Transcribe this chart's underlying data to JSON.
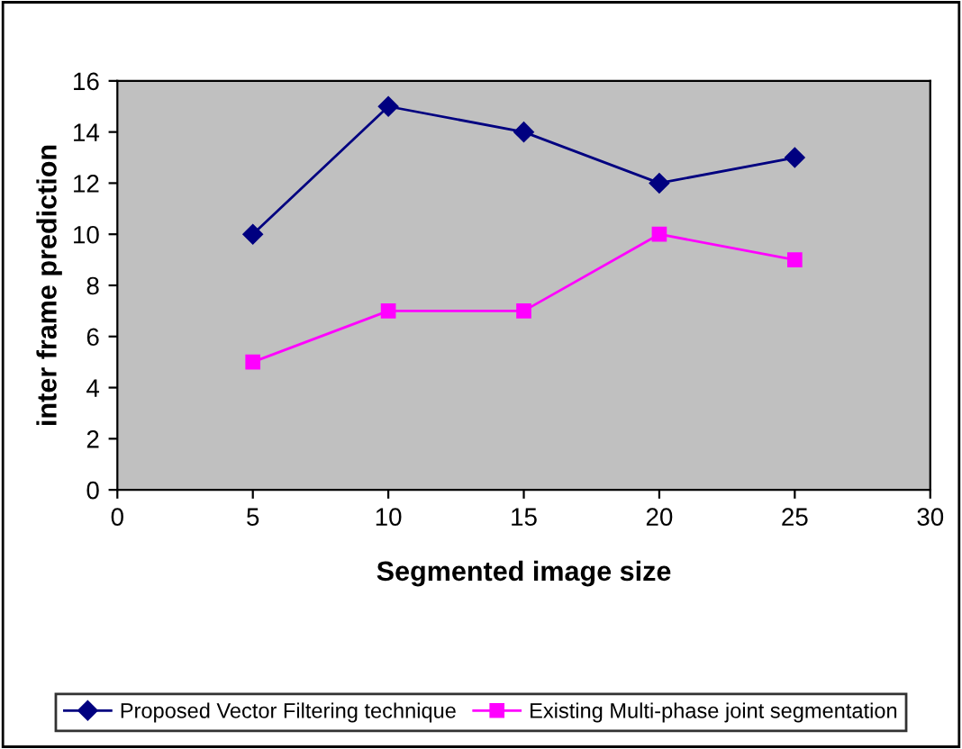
{
  "chart_data": {
    "type": "line",
    "xlabel": "Segmented image size",
    "ylabel": "inter frame prediction",
    "x": [
      5,
      10,
      15,
      20,
      25
    ],
    "series": [
      {
        "name": "Proposed Vector Filtering technique",
        "color": "#000080",
        "values": [
          10,
          15,
          14,
          12,
          13
        ],
        "marker": "diamond"
      },
      {
        "name": "Existing Multi-phase joint segmentation",
        "color": "#ff00ff",
        "values": [
          5,
          7,
          7,
          10,
          9
        ],
        "marker": "square"
      }
    ],
    "xlim": [
      0,
      30
    ],
    "xticks": [
      0,
      5,
      10,
      15,
      20,
      25,
      30
    ],
    "ylim": [
      0,
      16
    ],
    "yticks": [
      0,
      2,
      4,
      6,
      8,
      10,
      12,
      14,
      16
    ],
    "grid": false,
    "legend": "bottom",
    "line_style": "solid"
  }
}
